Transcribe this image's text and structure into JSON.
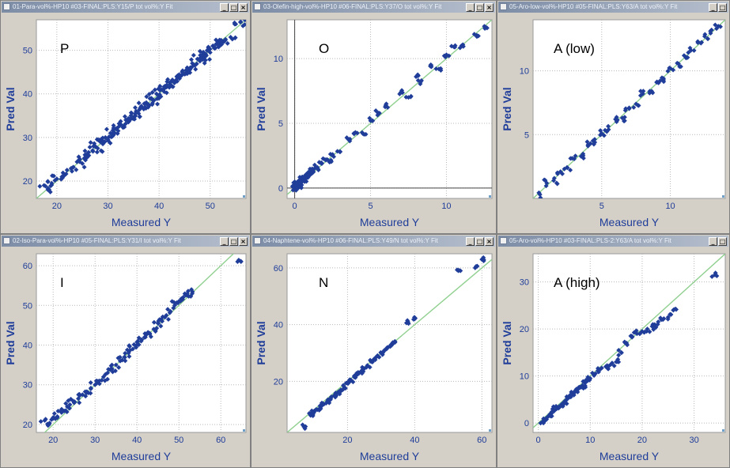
{
  "windows": [
    {
      "title": "01-Para-vol%-HP10 #03-FINAL:PLS:Y15/P tot vol%:Y Fit",
      "controls": [
        "_",
        "□",
        "×"
      ]
    },
    {
      "title": "03-Olefin-high-vol%-HP10 #06-FINAL:PLS:Y37/O tot vol%:Y Fit",
      "controls": [
        "_",
        "□",
        "×"
      ]
    },
    {
      "title": "05-Aro-low-vol%-HP10 #05-FINAL:PLS:Y63/A tot vol%:Y Fit",
      "controls": [
        "_",
        "□"
      ]
    },
    {
      "title": "02-Iso-Para-vol%-HP10 #05-FINAL:PLS:Y31/I tot vol%:Y Fit",
      "controls": [
        "_",
        "□",
        "×"
      ]
    },
    {
      "title": "04-Naphtene-vol%-HP10 #06-FINAL:PLS:Y49/N tot vol%:Y Fit",
      "controls": [
        "_",
        "□",
        "×"
      ]
    },
    {
      "title": "05-Aro-vol%-HP10 #03-FINAL:PLS-2:Y63/A tot vol%:Y Fit",
      "controls": [
        "_",
        "□"
      ]
    }
  ],
  "chart_data": [
    {
      "type": "scatter",
      "annotation": "P",
      "xlabel": "Measured Y",
      "ylabel": "Pred Val",
      "xlim": [
        16,
        57
      ],
      "ylim": [
        16,
        57
      ],
      "xticks": [
        20,
        30,
        40,
        50
      ],
      "yticks": [
        20,
        30,
        40,
        50
      ],
      "fit_line": [
        [
          16,
          16
        ],
        [
          57,
          57
        ]
      ],
      "marker_color": "#1f3d99",
      "fit_color": "#8fd08f",
      "grid": true,
      "noise": 1.2,
      "points": [
        [
          17.5,
          19
        ],
        [
          18.5,
          18
        ],
        [
          19,
          19.5
        ],
        [
          20,
          20.5
        ],
        [
          21,
          21
        ],
        [
          22,
          22.5
        ],
        [
          23,
          23
        ],
        [
          24.5,
          25
        ],
        [
          25,
          24
        ],
        [
          25.5,
          26
        ],
        [
          26,
          25.5
        ],
        [
          27,
          27
        ],
        [
          27.5,
          28
        ],
        [
          28,
          27.5
        ],
        [
          28.5,
          29
        ],
        [
          29,
          28.5
        ],
        [
          29.5,
          30
        ],
        [
          30,
          29.5
        ],
        [
          30.5,
          31
        ],
        [
          31,
          30.5
        ],
        [
          31.5,
          32
        ],
        [
          32,
          31.5
        ],
        [
          32.5,
          33
        ],
        [
          33,
          32.5
        ],
        [
          33.5,
          34
        ],
        [
          34,
          33.5
        ],
        [
          34.5,
          35
        ],
        [
          35,
          34.5
        ],
        [
          35.5,
          36
        ],
        [
          36,
          35.5
        ],
        [
          36.5,
          37
        ],
        [
          37,
          36.5
        ],
        [
          37.5,
          38
        ],
        [
          38,
          37.5
        ],
        [
          38.5,
          39
        ],
        [
          39,
          38.5
        ],
        [
          39.5,
          40
        ],
        [
          40,
          39.5
        ],
        [
          40.5,
          41
        ],
        [
          41,
          40.5
        ],
        [
          41.5,
          42
        ],
        [
          42,
          41.5
        ],
        [
          42.5,
          43
        ],
        [
          43,
          42.5
        ],
        [
          43.5,
          44
        ],
        [
          44,
          43.5
        ],
        [
          44.5,
          45
        ],
        [
          45,
          44.5
        ],
        [
          45.5,
          46
        ],
        [
          46,
          45.5
        ],
        [
          46.5,
          47
        ],
        [
          47,
          46.5
        ],
        [
          47.5,
          48
        ],
        [
          48,
          47.5
        ],
        [
          48.5,
          49
        ],
        [
          49,
          48.5
        ],
        [
          49.5,
          50
        ],
        [
          50,
          49.5
        ],
        [
          50.5,
          51
        ],
        [
          51,
          50.5
        ],
        [
          51.5,
          52
        ],
        [
          52,
          51.5
        ],
        [
          52.5,
          52
        ],
        [
          53,
          52.5
        ],
        [
          54,
          53
        ],
        [
          55,
          56
        ],
        [
          56,
          56.5
        ]
      ]
    },
    {
      "type": "scatter",
      "annotation": "O",
      "xlabel": "Measured Y",
      "ylabel": "Pred Val",
      "xlim": [
        -0.5,
        13
      ],
      "ylim": [
        -0.8,
        13
      ],
      "xticks": [
        0,
        5,
        10
      ],
      "yticks": [
        0,
        5,
        10
      ],
      "fit_line": [
        [
          -0.5,
          -0.5
        ],
        [
          13,
          13
        ]
      ],
      "marker_color": "#1f3d99",
      "fit_color": "#8fd08f",
      "grid": true,
      "noise": 0.25,
      "points": [
        [
          0,
          0
        ],
        [
          0,
          0.2
        ],
        [
          0.1,
          0.1
        ],
        [
          0.1,
          0.4
        ],
        [
          0.2,
          0.2
        ],
        [
          0.2,
          0.5
        ],
        [
          0.3,
          0.3
        ],
        [
          0.3,
          0.6
        ],
        [
          0.4,
          0.4
        ],
        [
          0.4,
          0.2
        ],
        [
          0.5,
          0.5
        ],
        [
          0.5,
          0.8
        ],
        [
          0.6,
          0.6
        ],
        [
          0.7,
          0.9
        ],
        [
          0.8,
          0.8
        ],
        [
          0.9,
          1.1
        ],
        [
          1,
          1
        ],
        [
          1.1,
          1.3
        ],
        [
          1.2,
          1.2
        ],
        [
          1.3,
          1.5
        ],
        [
          1.5,
          1.6
        ],
        [
          1.8,
          1.9
        ],
        [
          2,
          2.2
        ],
        [
          2.3,
          2
        ],
        [
          2.5,
          2.6
        ],
        [
          3,
          2.8
        ],
        [
          3.5,
          3.8
        ],
        [
          4,
          4.3
        ],
        [
          4.5,
          4.2
        ],
        [
          5,
          5.2
        ],
        [
          5.5,
          5.8
        ],
        [
          6,
          6.4
        ],
        [
          7,
          7.4
        ],
        [
          7.5,
          7
        ],
        [
          8,
          8.6
        ],
        [
          8.3,
          8.2
        ],
        [
          9,
          9.5
        ],
        [
          9.5,
          9.2
        ],
        [
          10,
          10.3
        ],
        [
          10.5,
          10.9
        ],
        [
          11,
          11
        ],
        [
          12,
          11.8
        ],
        [
          12.5,
          12.5
        ]
      ]
    },
    {
      "type": "scatter",
      "annotation": "A (low)",
      "xlabel": "Measured Y",
      "ylabel": "Pred Val",
      "xlim": [
        0,
        14
      ],
      "ylim": [
        0,
        14
      ],
      "xticks": [
        5,
        10
      ],
      "yticks": [
        5,
        10
      ],
      "fit_line": [
        [
          0,
          0
        ],
        [
          14,
          14
        ]
      ],
      "marker_color": "#1f3d99",
      "fit_color": "#8fd08f",
      "grid": true,
      "noise": 0.35,
      "points": [
        [
          0.5,
          0.3
        ],
        [
          1,
          1.2
        ],
        [
          1.5,
          1.4
        ],
        [
          2,
          2.1
        ],
        [
          2.5,
          2.4
        ],
        [
          3,
          3.1
        ],
        [
          3.5,
          3.3
        ],
        [
          4,
          4.2
        ],
        [
          4.5,
          4.4
        ],
        [
          5,
          5.1
        ],
        [
          5.5,
          5.4
        ],
        [
          6,
          6.2
        ],
        [
          6.5,
          6.3
        ],
        [
          7,
          7.1
        ],
        [
          7.5,
          7.4
        ],
        [
          8,
          8.2
        ],
        [
          8.5,
          8.4
        ],
        [
          9,
          9.1
        ],
        [
          9.5,
          9.4
        ],
        [
          10,
          10.2
        ],
        [
          10.5,
          10.6
        ],
        [
          11,
          11.2
        ],
        [
          11.5,
          11.6
        ],
        [
          12,
          12.3
        ],
        [
          12.5,
          12.7
        ],
        [
          13,
          13.2
        ],
        [
          13.5,
          13.5
        ]
      ]
    },
    {
      "type": "scatter",
      "annotation": "I",
      "xlabel": "Measured Y",
      "ylabel": "Pred Val",
      "xlim": [
        16,
        66
      ],
      "ylim": [
        18,
        63
      ],
      "xticks": [
        20,
        30,
        40,
        50,
        60
      ],
      "yticks": [
        20,
        30,
        40,
        50,
        60
      ],
      "fit_line": [
        [
          16,
          16
        ],
        [
          66,
          66
        ]
      ],
      "marker_color": "#1f3d99",
      "fit_color": "#8fd08f",
      "grid": true,
      "noise": 1.3,
      "points": [
        [
          18,
          21
        ],
        [
          19,
          20
        ],
        [
          20,
          21.5
        ],
        [
          21,
          22
        ],
        [
          22,
          23
        ],
        [
          23,
          23.5
        ],
        [
          24,
          25
        ],
        [
          25,
          25.5
        ],
        [
          26,
          26.5
        ],
        [
          27,
          27.5
        ],
        [
          28,
          28
        ],
        [
          29,
          29
        ],
        [
          30,
          30
        ],
        [
          31,
          31
        ],
        [
          32,
          32
        ],
        [
          33,
          33
        ],
        [
          34,
          34
        ],
        [
          35,
          35
        ],
        [
          36,
          36
        ],
        [
          37,
          37
        ],
        [
          38,
          38
        ],
        [
          39,
          39
        ],
        [
          40,
          40
        ],
        [
          41,
          41
        ],
        [
          42,
          42
        ],
        [
          43,
          43
        ],
        [
          44,
          44
        ],
        [
          45,
          45.5
        ],
        [
          46,
          46
        ],
        [
          47,
          47.5
        ],
        [
          48,
          48.5
        ],
        [
          49,
          50
        ],
        [
          50,
          51
        ],
        [
          51,
          52
        ],
        [
          52,
          53
        ],
        [
          53,
          54
        ],
        [
          64,
          61
        ]
      ]
    },
    {
      "type": "scatter",
      "annotation": "N",
      "xlabel": "Measured Y",
      "ylabel": "Pred Val",
      "xlim": [
        2,
        63
      ],
      "ylim": [
        2,
        65
      ],
      "xticks": [
        20,
        40,
        60
      ],
      "yticks": [
        20,
        40,
        60
      ],
      "fit_line": [
        [
          2,
          2
        ],
        [
          63,
          63
        ]
      ],
      "marker_color": "#1f3d99",
      "fit_color": "#8fd08f",
      "grid": true,
      "noise": 0.9,
      "points": [
        [
          7,
          4
        ],
        [
          9,
          8
        ],
        [
          10,
          9
        ],
        [
          11,
          10
        ],
        [
          12,
          11
        ],
        [
          13,
          12
        ],
        [
          14,
          13
        ],
        [
          15,
          14
        ],
        [
          16,
          15
        ],
        [
          17,
          16
        ],
        [
          18,
          17
        ],
        [
          19,
          18
        ],
        [
          20,
          19.5
        ],
        [
          21,
          20.5
        ],
        [
          22,
          21.5
        ],
        [
          23,
          22.5
        ],
        [
          24,
          23.5
        ],
        [
          25,
          24.5
        ],
        [
          26,
          25.5
        ],
        [
          27,
          27
        ],
        [
          28,
          28
        ],
        [
          29,
          29
        ],
        [
          30,
          30
        ],
        [
          31,
          31
        ],
        [
          32,
          32
        ],
        [
          33,
          33
        ],
        [
          34,
          34
        ],
        [
          38,
          41
        ],
        [
          40,
          42
        ],
        [
          53,
          59
        ],
        [
          58,
          60
        ],
        [
          60,
          63
        ]
      ]
    },
    {
      "type": "scatter",
      "annotation": "A (high)",
      "xlabel": "Measured Y",
      "ylabel": "Pred Val",
      "xlim": [
        -1,
        36
      ],
      "ylim": [
        -2,
        36
      ],
      "xticks": [
        0,
        10,
        20,
        30
      ],
      "yticks": [
        0,
        10,
        20,
        30
      ],
      "fit_line": [
        [
          -1,
          -1
        ],
        [
          36,
          36
        ]
      ],
      "marker_color": "#1f3d99",
      "fit_color": "#8fd08f",
      "grid": true,
      "noise": 0.8,
      "points": [
        [
          1,
          0
        ],
        [
          1.5,
          1
        ],
        [
          2,
          1.5
        ],
        [
          2.5,
          2
        ],
        [
          3,
          2.5
        ],
        [
          3.5,
          3
        ],
        [
          4,
          3.5
        ],
        [
          4.5,
          4
        ],
        [
          5,
          4.5
        ],
        [
          5.5,
          5
        ],
        [
          6,
          5.5
        ],
        [
          6.5,
          6
        ],
        [
          7,
          6.5
        ],
        [
          7.5,
          7
        ],
        [
          8,
          7.5
        ],
        [
          8.5,
          8
        ],
        [
          9,
          8.5
        ],
        [
          9.5,
          9
        ],
        [
          10,
          9.5
        ],
        [
          11,
          10.5
        ],
        [
          12,
          11.5
        ],
        [
          13,
          12
        ],
        [
          14,
          12.5
        ],
        [
          15,
          13
        ],
        [
          16,
          15
        ],
        [
          17,
          17
        ],
        [
          18,
          18.5
        ],
        [
          19,
          19
        ],
        [
          20,
          19.5
        ],
        [
          21,
          20
        ],
        [
          22,
          20.5
        ],
        [
          23,
          21
        ],
        [
          24,
          22
        ],
        [
          25,
          22.5
        ],
        [
          26,
          24
        ],
        [
          34,
          31.5
        ]
      ]
    }
  ]
}
